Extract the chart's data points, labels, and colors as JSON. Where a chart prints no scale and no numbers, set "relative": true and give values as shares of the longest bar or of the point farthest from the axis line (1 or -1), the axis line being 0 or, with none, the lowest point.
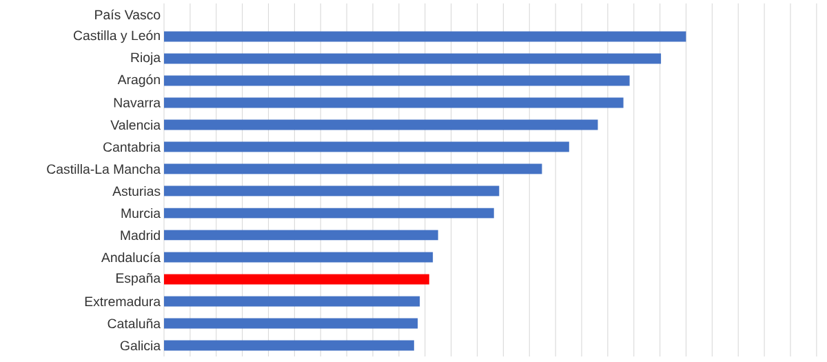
{
  "chart_data": {
    "type": "bar",
    "orientation": "horizontal",
    "relative": true,
    "grid": "x",
    "categories": [
      "País Vasco",
      "Castilla y León",
      "Rioja",
      "Aragón",
      "Navarra",
      "Valencia",
      "Cantabria",
      "Castilla-La Mancha",
      "Asturias",
      "Murcia",
      "Madrid",
      "Andalucía",
      "España",
      "Extremadura",
      "Cataluña",
      "Galicia"
    ],
    "values": [
      null,
      1,
      0.952,
      0.892,
      0.88,
      0.831,
      0.776,
      0.724,
      0.642,
      0.632,
      0.525,
      0.515,
      0.508,
      0.49,
      0.486,
      0.479
    ],
    "colors": [
      "#4472c4",
      "#4472c4",
      "#4472c4",
      "#4472c4",
      "#4472c4",
      "#4472c4",
      "#4472c4",
      "#4472c4",
      "#4472c4",
      "#4472c4",
      "#4472c4",
      "#4472c4",
      "#ff0000",
      "#4472c4",
      "#4472c4",
      "#4472c4"
    ]
  }
}
